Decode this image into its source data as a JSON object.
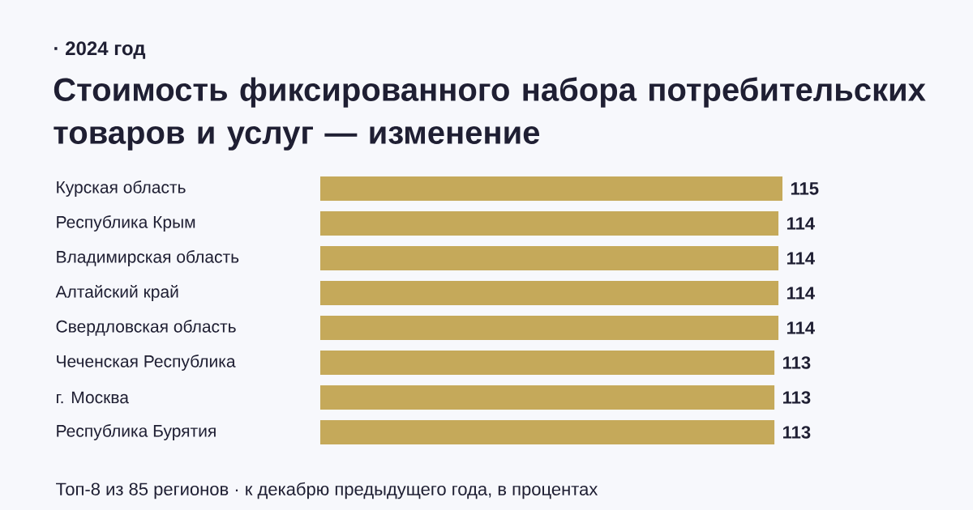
{
  "chart_data": {
    "type": "bar",
    "orientation": "horizontal",
    "subtitle": "· 2024 год",
    "title": "Стоимость фиксированного набора потребительских товаров и услуг — изменение",
    "categories": [
      "Курская область",
      "Республика Крым",
      "Владимирская область",
      "Алтайский край",
      "Свердловская область",
      "Чеченская Республика",
      "г. Москва",
      "Республика Бурятия"
    ],
    "values": [
      115,
      114,
      114,
      114,
      114,
      113,
      113,
      113
    ],
    "color": "#c5a95a",
    "data_labels": true,
    "annotations": [
      "Топ-8 из 85 регионов · к декабрю предыдущего года, в процентах"
    ]
  }
}
